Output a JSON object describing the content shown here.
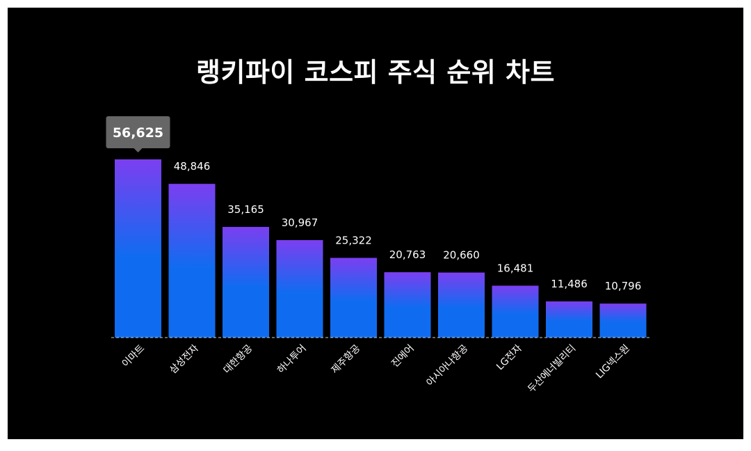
{
  "chart_data": {
    "type": "bar",
    "title": "랭키파이 코스피 주식 순위 차트",
    "categories": [
      "이마트",
      "삼성전자",
      "대한항공",
      "하나투어",
      "제주항공",
      "진에어",
      "아시아나항공",
      "LG전자",
      "두산에너빌리티",
      "LIG넥스원"
    ],
    "values": [
      56625,
      48846,
      35165,
      30967,
      25322,
      20763,
      20660,
      16481,
      11486,
      10796
    ],
    "value_labels": [
      "56,625",
      "48,846",
      "35,165",
      "30,967",
      "25,322",
      "20,763",
      "20,660",
      "16,481",
      "11,486",
      "10,796"
    ],
    "highlighted_index": 0,
    "ylim": [
      0,
      56625
    ],
    "grid": false,
    "legend": "none",
    "colors": {
      "bar_top": "#7b3ff0",
      "bar_bottom": "#0f6cf0",
      "tooltip_bg": "#666666",
      "background": "#000000",
      "baseline": "#cccccc"
    }
  }
}
